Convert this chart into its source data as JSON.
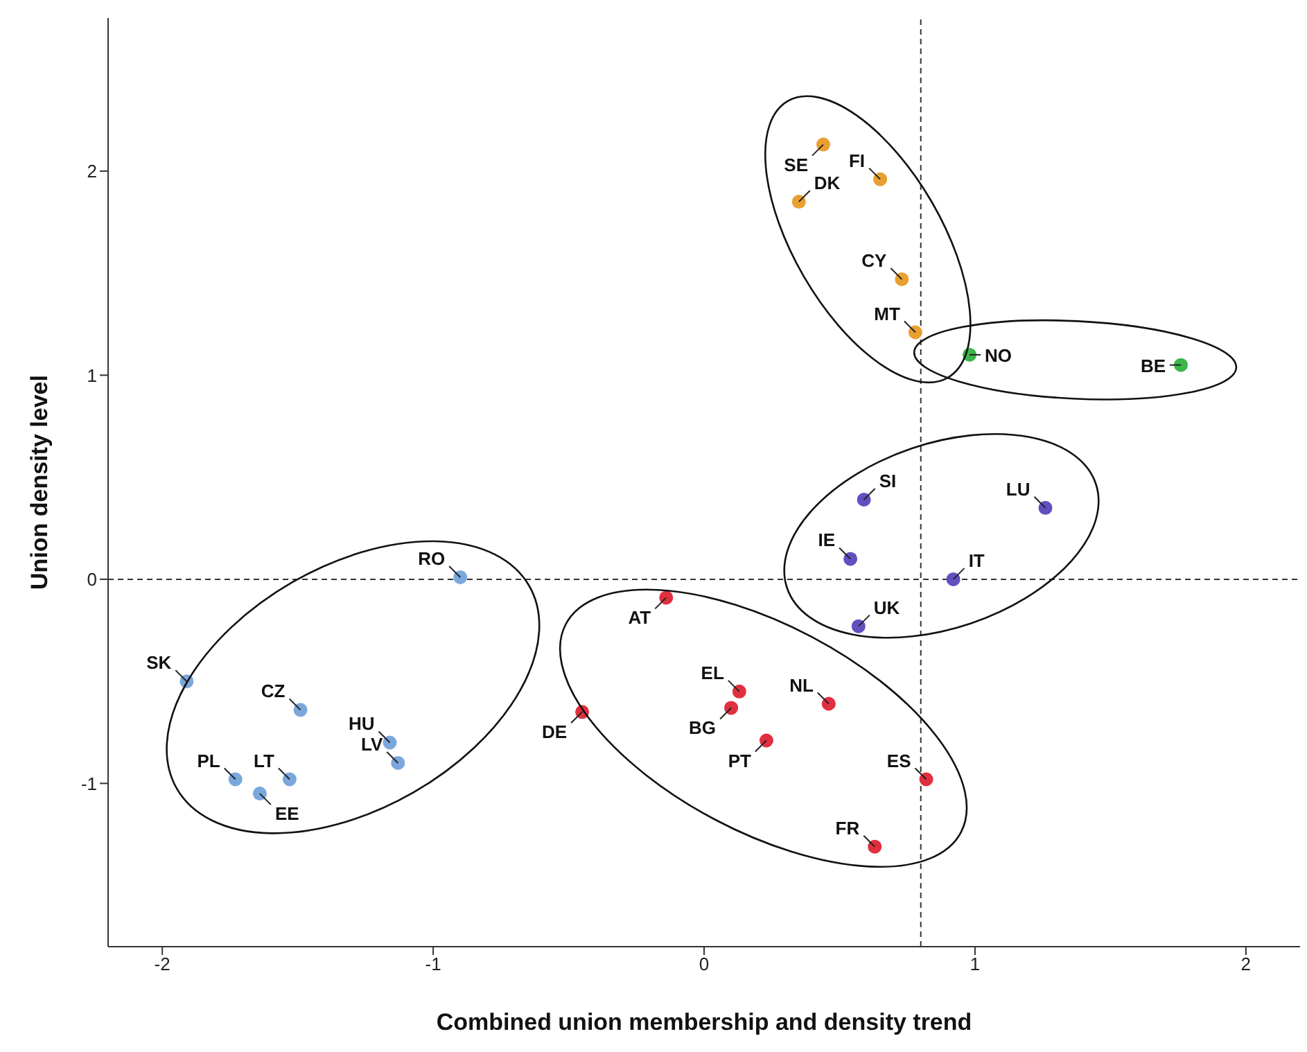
{
  "chart_data": {
    "type": "scatter",
    "xlabel": "Combined union membership and density trend",
    "ylabel": "Union density level",
    "xlim": [
      -2.2,
      2.2
    ],
    "ylim": [
      -1.8,
      2.75
    ],
    "xticks": [
      -2,
      -1,
      0,
      1,
      2
    ],
    "yticks": [
      -1,
      0,
      1,
      2
    ],
    "grid": false,
    "marker": "circle",
    "ref_lines": [
      {
        "axis": "x",
        "value": 0.8,
        "line_style": "dashed",
        "color": "#333333"
      },
      {
        "axis": "y",
        "value": 0,
        "line_style": "dashed",
        "color": "#333333"
      }
    ],
    "series": [
      {
        "color": "#e8a030",
        "x": [
          0.44,
          0.65,
          0.35,
          0.73,
          0.78
        ],
        "values": [
          2.13,
          1.96,
          1.85,
          1.47,
          1.21
        ],
        "value_labels": [
          "SE",
          "FI",
          "DK",
          "CY",
          "MT"
        ]
      },
      {
        "color": "#3cb54a",
        "x": [
          0.98,
          1.76
        ],
        "values": [
          1.1,
          1.05
        ],
        "value_labels": [
          "NO",
          "BE"
        ]
      },
      {
        "color": "#6050c0",
        "x": [
          0.59,
          1.26,
          0.54,
          0.92,
          0.57
        ],
        "values": [
          0.39,
          0.35,
          0.1,
          0.0,
          -0.23
        ],
        "value_labels": [
          "SI",
          "LU",
          "IE",
          "IT",
          "UK"
        ]
      },
      {
        "color": "#7aa8dc",
        "x": [
          -0.9,
          -1.91,
          -1.49,
          -1.16,
          -1.13,
          -1.73,
          -1.53,
          -1.64
        ],
        "values": [
          0.01,
          -0.5,
          -0.64,
          -0.8,
          -0.9,
          -0.98,
          -0.98,
          -1.05
        ],
        "value_labels": [
          "RO",
          "SK",
          "CZ",
          "HU",
          "LV",
          "PL",
          "LT",
          "EE"
        ]
      },
      {
        "color": "#e03040",
        "x": [
          -0.14,
          -0.45,
          0.13,
          0.1,
          0.46,
          0.23,
          0.82,
          0.63
        ],
        "values": [
          -0.09,
          -0.65,
          -0.55,
          -0.63,
          -0.61,
          -0.79,
          -0.98,
          -1.31
        ],
        "value_labels": [
          "AT",
          "DE",
          "EL",
          "BG",
          "NL",
          "PT",
          "ES",
          "FR"
        ]
      }
    ]
  }
}
